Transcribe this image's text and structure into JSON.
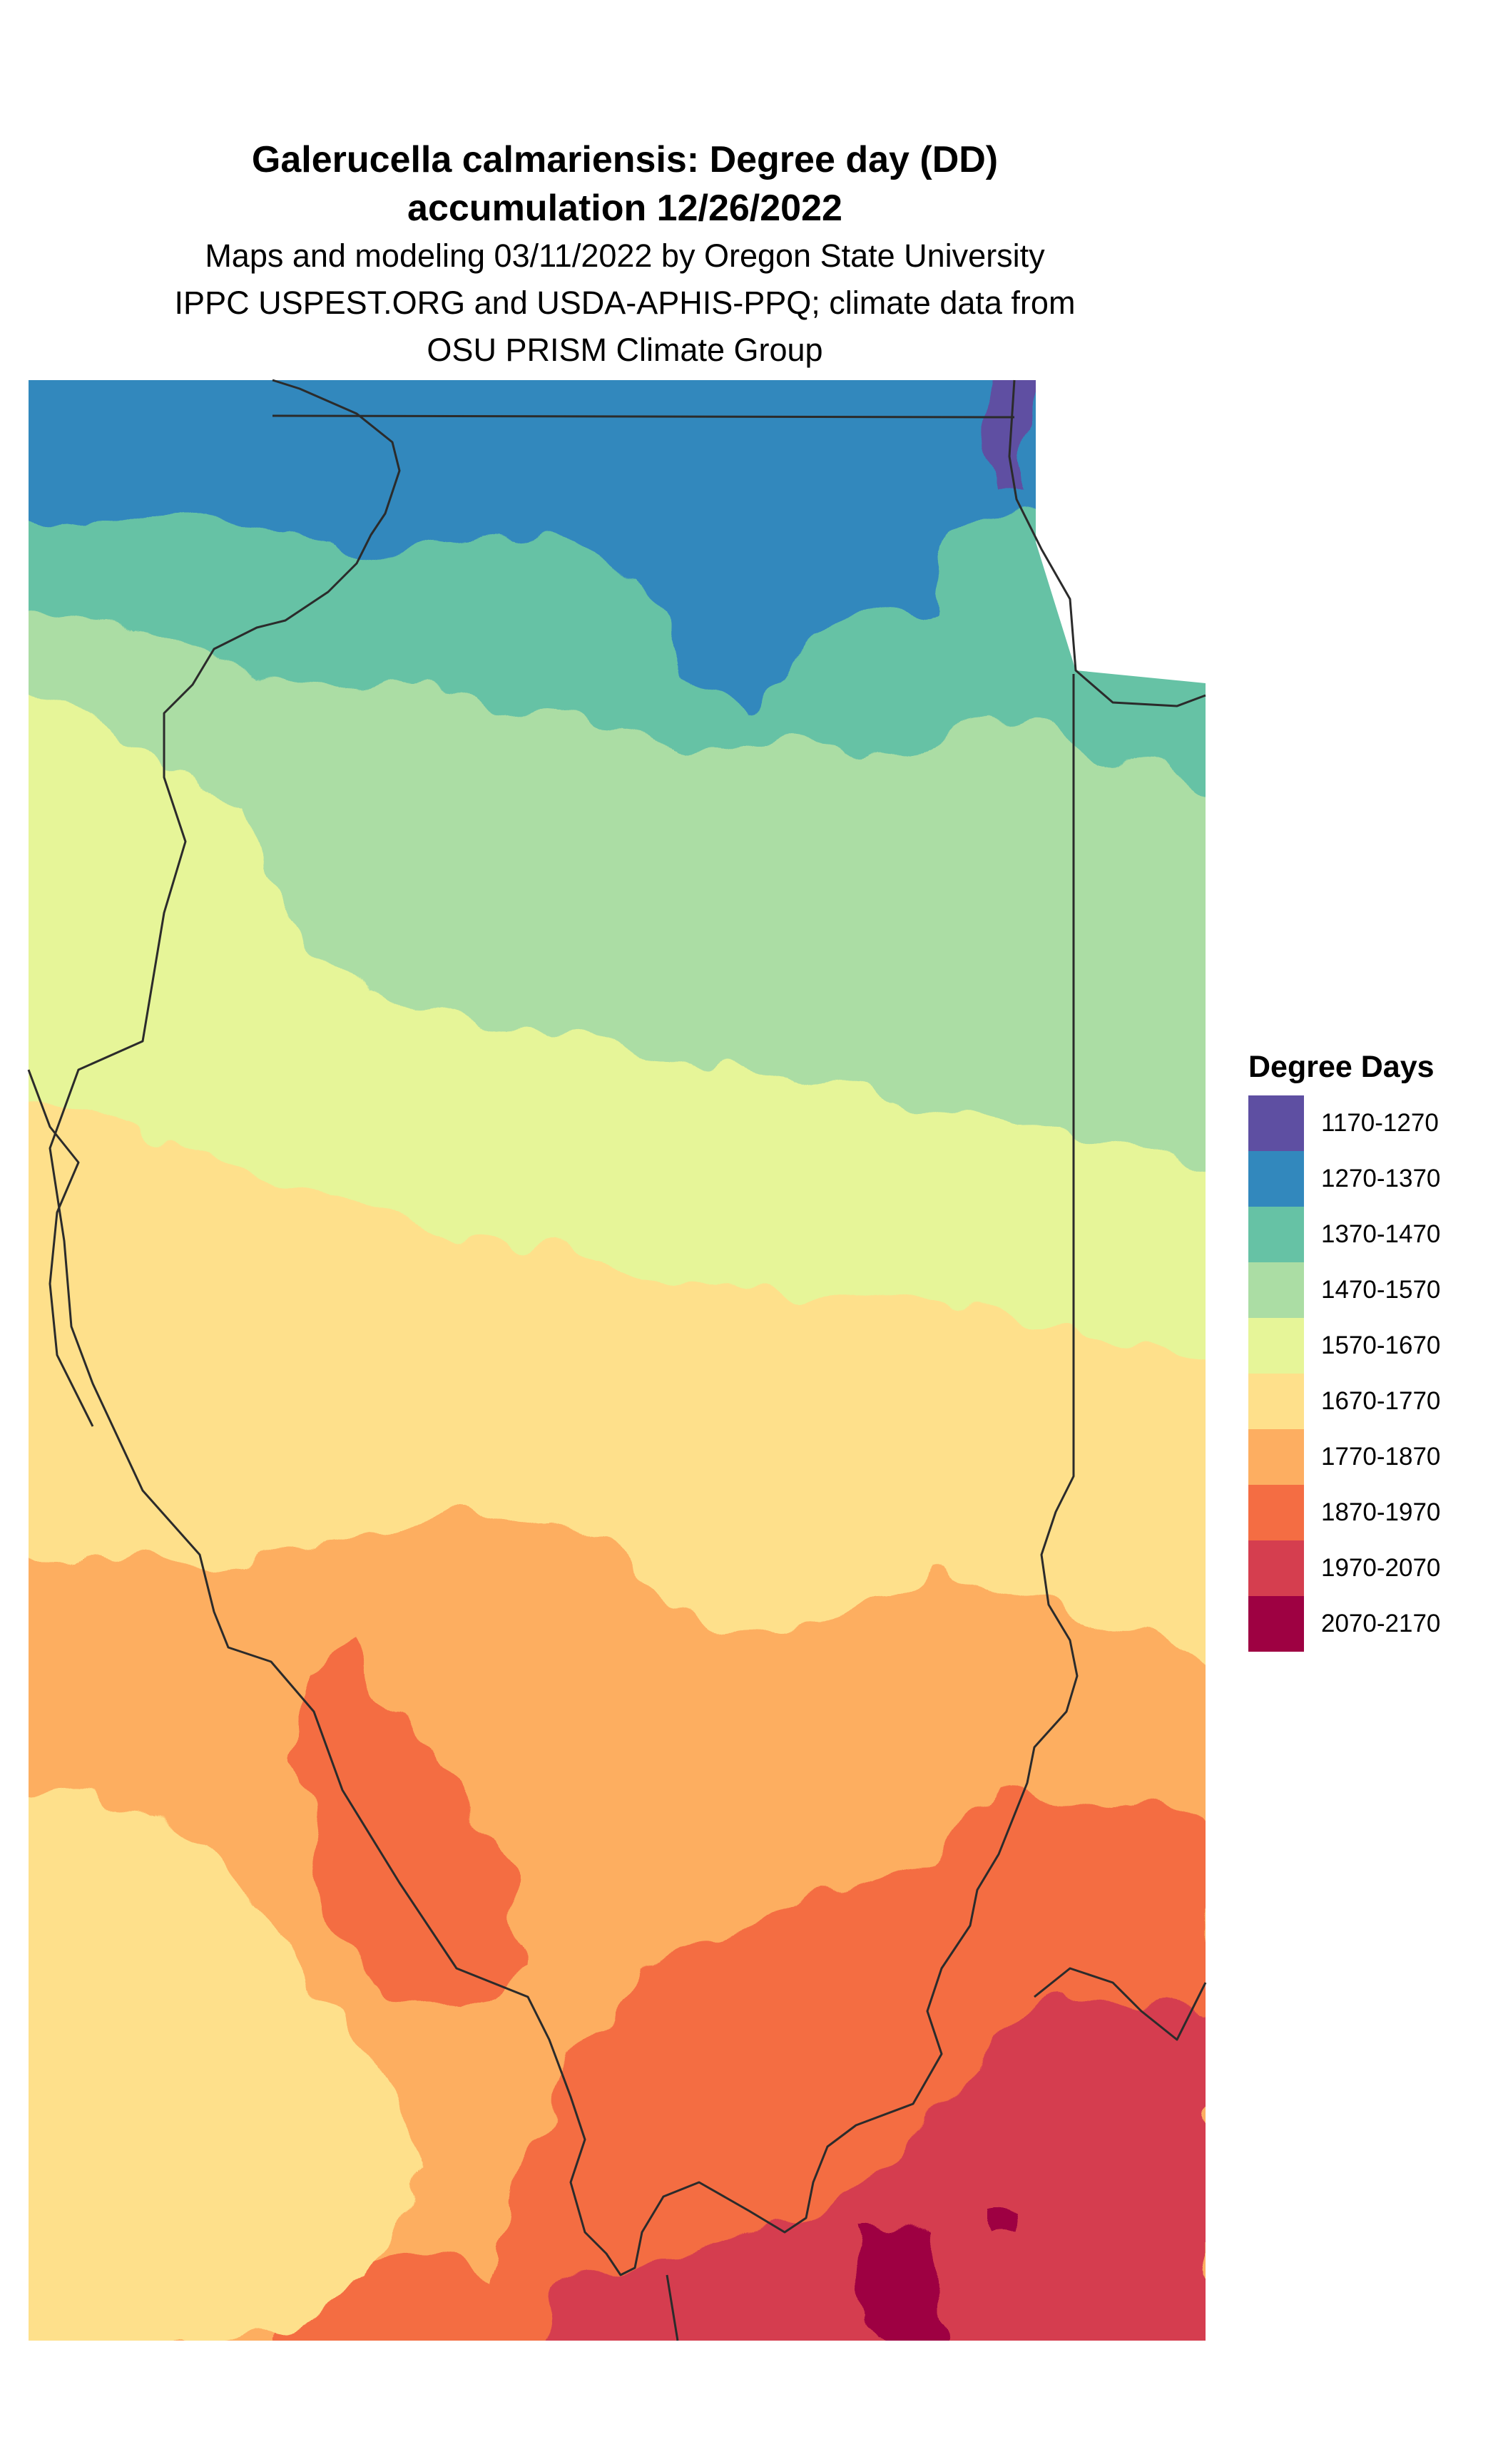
{
  "title": {
    "line1": "Galerucella calmariensis: Degree day (DD)",
    "line2": "accumulation 12/26/2022"
  },
  "subtitle": {
    "line1": "Maps and modeling 03/11/2022 by Oregon State University",
    "line2": "IPPC USPEST.ORG and USDA-APHIS-PPQ; climate data from",
    "line3": "OSU PRISM Climate Group"
  },
  "legend": {
    "title": "Degree Days",
    "items": [
      {
        "label": "1170-1270",
        "color": "#5E4FA2"
      },
      {
        "label": "1270-1370",
        "color": "#3288BD"
      },
      {
        "label": "1370-1470",
        "color": "#66C2A5"
      },
      {
        "label": "1470-1570",
        "color": "#ABDDA4"
      },
      {
        "label": "1570-1670",
        "color": "#E6F598"
      },
      {
        "label": "1670-1770",
        "color": "#FEE08B"
      },
      {
        "label": "1770-1870",
        "color": "#FDAE61"
      },
      {
        "label": "1870-1970",
        "color": "#F46D43"
      },
      {
        "label": "1970-2070",
        "color": "#D53E4F"
      },
      {
        "label": "2070-2170",
        "color": "#9E0142"
      }
    ]
  }
}
